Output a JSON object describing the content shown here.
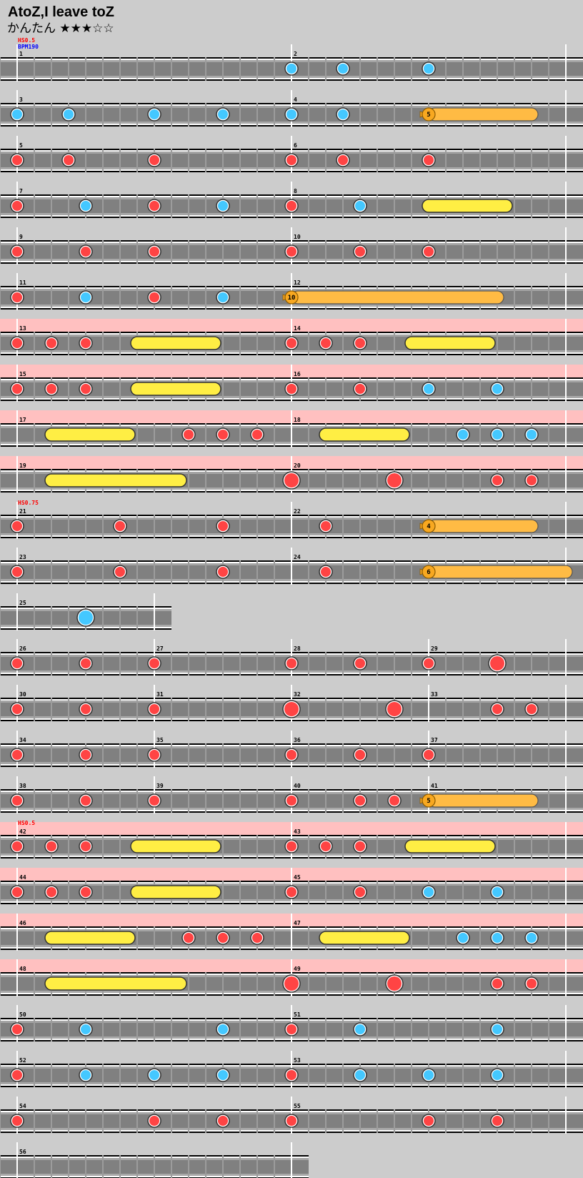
{
  "title": "AtoZ,I leave toZ",
  "difficulty": {
    "name": "かんたん",
    "stars": "★★★☆☆",
    "level": 3,
    "max": 5
  },
  "colors": {
    "don": "#ff4444",
    "ka": "#44c8ff",
    "roll": "#ffee44",
    "balloon": "#ffbb44",
    "gogo": "#ffc0c0",
    "lane": "#808080",
    "hs": "#ff0000",
    "bpm": "#0000ff"
  },
  "chart_data": {
    "type": "taiko-score",
    "units": "16th notes from row start",
    "rows": [
      {
        "labels": [
          {
            "text": "HS0.5",
            "color": "#ff0000"
          },
          {
            "text": "BPM190",
            "color": "#0000ff"
          }
        ],
        "measures": [
          {
            "num": "1",
            "start": 0
          },
          {
            "num": "2",
            "start": 16
          }
        ],
        "end": 32,
        "notes": [
          [
            16,
            "k"
          ],
          [
            19,
            "k"
          ],
          [
            24,
            "k"
          ]
        ]
      },
      {
        "measures": [
          {
            "num": "3",
            "start": 0
          },
          {
            "num": "4",
            "start": 16
          }
        ],
        "end": 32,
        "notes": [
          [
            0,
            "k"
          ],
          [
            3,
            "k"
          ],
          [
            8,
            "k"
          ],
          [
            12,
            "k"
          ],
          [
            16,
            "k"
          ],
          [
            19,
            "k"
          ]
        ],
        "rolls": [
          {
            "type": "balloon",
            "start": 24,
            "end": 30,
            "count": "5"
          }
        ]
      },
      {
        "measures": [
          {
            "num": "5",
            "start": 0
          },
          {
            "num": "6",
            "start": 16
          }
        ],
        "end": 32,
        "notes": [
          [
            0,
            "d"
          ],
          [
            3,
            "d"
          ],
          [
            8,
            "d"
          ],
          [
            16,
            "d"
          ],
          [
            19,
            "d"
          ],
          [
            24,
            "d"
          ]
        ]
      },
      {
        "measures": [
          {
            "num": "7",
            "start": 0
          },
          {
            "num": "8",
            "start": 16
          }
        ],
        "end": 32,
        "notes": [
          [
            0,
            "d"
          ],
          [
            4,
            "k"
          ],
          [
            8,
            "d"
          ],
          [
            12,
            "k"
          ],
          [
            16,
            "d"
          ],
          [
            20,
            "k"
          ]
        ],
        "rolls": [
          {
            "type": "roll",
            "start": 24,
            "end": 28.5
          }
        ]
      },
      {
        "measures": [
          {
            "num": "9",
            "start": 0
          },
          {
            "num": "10",
            "start": 16
          }
        ],
        "end": 32,
        "notes": [
          [
            0,
            "d"
          ],
          [
            4,
            "d"
          ],
          [
            8,
            "d"
          ],
          [
            16,
            "d"
          ],
          [
            20,
            "d"
          ],
          [
            24,
            "d"
          ]
        ]
      },
      {
        "measures": [
          {
            "num": "11",
            "start": 0
          },
          {
            "num": "12",
            "start": 16
          }
        ],
        "end": 32,
        "notes": [
          [
            0,
            "d"
          ],
          [
            4,
            "k"
          ],
          [
            8,
            "d"
          ],
          [
            12,
            "k"
          ]
        ],
        "rolls": [
          {
            "type": "balloon",
            "start": 16,
            "end": 28,
            "count": "10"
          }
        ]
      },
      {
        "gogo": true,
        "measures": [
          {
            "num": "13",
            "start": 0
          },
          {
            "num": "14",
            "start": 16
          }
        ],
        "end": 32,
        "notes": [
          [
            0,
            "d"
          ],
          [
            2,
            "d"
          ],
          [
            4,
            "d"
          ],
          [
            16,
            "d"
          ],
          [
            18,
            "d"
          ],
          [
            20,
            "d"
          ]
        ],
        "rolls": [
          {
            "type": "roll",
            "start": 7,
            "end": 11.5
          },
          {
            "type": "roll",
            "start": 23,
            "end": 27.5
          }
        ]
      },
      {
        "gogo": true,
        "measures": [
          {
            "num": "15",
            "start": 0
          },
          {
            "num": "16",
            "start": 16
          }
        ],
        "end": 32,
        "notes": [
          [
            0,
            "d"
          ],
          [
            2,
            "d"
          ],
          [
            4,
            "d"
          ],
          [
            16,
            "d"
          ],
          [
            20,
            "d"
          ],
          [
            24,
            "k"
          ],
          [
            28,
            "k"
          ]
        ],
        "rolls": [
          {
            "type": "roll",
            "start": 7,
            "end": 11.5
          }
        ]
      },
      {
        "gogo": true,
        "measures": [
          {
            "num": "17",
            "start": 0
          },
          {
            "num": "18",
            "start": 16
          }
        ],
        "end": 32,
        "notes": [
          [
            10,
            "d"
          ],
          [
            12,
            "d"
          ],
          [
            14,
            "d"
          ],
          [
            26,
            "k"
          ],
          [
            28,
            "k"
          ],
          [
            30,
            "k"
          ]
        ],
        "rolls": [
          {
            "type": "roll",
            "start": 2,
            "end": 6.5
          },
          {
            "type": "roll",
            "start": 18,
            "end": 22.5
          }
        ]
      },
      {
        "gogo": true,
        "measures": [
          {
            "num": "19",
            "start": 0
          },
          {
            "num": "20",
            "start": 16
          }
        ],
        "end": 32,
        "notes": [
          [
            16,
            "D"
          ],
          [
            22,
            "D"
          ],
          [
            28,
            "d"
          ],
          [
            30,
            "d"
          ]
        ],
        "rolls": [
          {
            "type": "roll",
            "start": 2,
            "end": 9.5
          }
        ]
      },
      {
        "labels": [
          {
            "text": "HS0.75",
            "color": "#ff0000"
          }
        ],
        "measures": [
          {
            "num": "21",
            "start": 0
          },
          {
            "num": "22",
            "start": 16
          }
        ],
        "end": 32,
        "notes": [
          [
            0,
            "d"
          ],
          [
            6,
            "d"
          ],
          [
            12,
            "d"
          ],
          [
            18,
            "d"
          ]
        ],
        "rolls": [
          {
            "type": "balloon",
            "start": 24,
            "end": 30,
            "count": "4"
          }
        ]
      },
      {
        "measures": [
          {
            "num": "23",
            "start": 0
          },
          {
            "num": "24",
            "start": 16
          }
        ],
        "end": 32,
        "notes": [
          [
            0,
            "d"
          ],
          [
            6,
            "d"
          ],
          [
            12,
            "d"
          ],
          [
            18,
            "d"
          ]
        ],
        "rolls": [
          {
            "type": "balloon",
            "start": 24,
            "end": 32,
            "count": "6"
          }
        ]
      },
      {
        "measures": [
          {
            "num": "25",
            "start": 0
          }
        ],
        "end": 8,
        "notes": [
          [
            4,
            "K"
          ]
        ]
      },
      {
        "measures": [
          {
            "num": "26",
            "start": 0
          },
          {
            "num": "27",
            "start": 8
          },
          {
            "num": "28",
            "start": 16
          },
          {
            "num": "29",
            "start": 24
          }
        ],
        "end": 32,
        "notes": [
          [
            0,
            "d"
          ],
          [
            4,
            "d"
          ],
          [
            8,
            "d"
          ],
          [
            16,
            "d"
          ],
          [
            20,
            "d"
          ],
          [
            24,
            "d"
          ],
          [
            28,
            "D"
          ]
        ]
      },
      {
        "measures": [
          {
            "num": "30",
            "start": 0
          },
          {
            "num": "31",
            "start": 8
          },
          {
            "num": "32",
            "start": 16
          },
          {
            "num": "33",
            "start": 24
          }
        ],
        "end": 32,
        "notes": [
          [
            0,
            "d"
          ],
          [
            4,
            "d"
          ],
          [
            8,
            "d"
          ],
          [
            16,
            "D"
          ],
          [
            22,
            "D"
          ],
          [
            28,
            "d"
          ],
          [
            30,
            "d"
          ]
        ]
      },
      {
        "measures": [
          {
            "num": "34",
            "start": 0
          },
          {
            "num": "35",
            "start": 8
          },
          {
            "num": "36",
            "start": 16
          },
          {
            "num": "37",
            "start": 24
          }
        ],
        "end": 32,
        "notes": [
          [
            0,
            "d"
          ],
          [
            4,
            "d"
          ],
          [
            8,
            "d"
          ],
          [
            16,
            "d"
          ],
          [
            20,
            "d"
          ],
          [
            24,
            "d"
          ]
        ]
      },
      {
        "measures": [
          {
            "num": "38",
            "start": 0
          },
          {
            "num": "39",
            "start": 8
          },
          {
            "num": "40",
            "start": 16
          },
          {
            "num": "41",
            "start": 24
          }
        ],
        "end": 32,
        "notes": [
          [
            0,
            "d"
          ],
          [
            4,
            "d"
          ],
          [
            8,
            "d"
          ],
          [
            16,
            "d"
          ],
          [
            20,
            "d"
          ],
          [
            22,
            "d"
          ]
        ],
        "rolls": [
          {
            "type": "balloon",
            "start": 24,
            "end": 30,
            "count": "5"
          }
        ]
      },
      {
        "gogo": true,
        "labels": [
          {
            "text": "HS0.5",
            "color": "#ff0000"
          }
        ],
        "measures": [
          {
            "num": "42",
            "start": 0
          },
          {
            "num": "43",
            "start": 16
          }
        ],
        "end": 32,
        "notes": [
          [
            0,
            "d"
          ],
          [
            2,
            "d"
          ],
          [
            4,
            "d"
          ],
          [
            16,
            "d"
          ],
          [
            18,
            "d"
          ],
          [
            20,
            "d"
          ]
        ],
        "rolls": [
          {
            "type": "roll",
            "start": 7,
            "end": 11.5
          },
          {
            "type": "roll",
            "start": 23,
            "end": 27.5
          }
        ]
      },
      {
        "gogo": true,
        "measures": [
          {
            "num": "44",
            "start": 0
          },
          {
            "num": "45",
            "start": 16
          }
        ],
        "end": 32,
        "notes": [
          [
            0,
            "d"
          ],
          [
            2,
            "d"
          ],
          [
            4,
            "d"
          ],
          [
            16,
            "d"
          ],
          [
            20,
            "d"
          ],
          [
            24,
            "k"
          ],
          [
            28,
            "k"
          ]
        ],
        "rolls": [
          {
            "type": "roll",
            "start": 7,
            "end": 11.5
          }
        ]
      },
      {
        "gogo": true,
        "measures": [
          {
            "num": "46",
            "start": 0
          },
          {
            "num": "47",
            "start": 16
          }
        ],
        "end": 32,
        "notes": [
          [
            10,
            "d"
          ],
          [
            12,
            "d"
          ],
          [
            14,
            "d"
          ],
          [
            26,
            "k"
          ],
          [
            28,
            "k"
          ],
          [
            30,
            "k"
          ]
        ],
        "rolls": [
          {
            "type": "roll",
            "start": 2,
            "end": 6.5
          },
          {
            "type": "roll",
            "start": 18,
            "end": 22.5
          }
        ]
      },
      {
        "gogo": true,
        "measures": [
          {
            "num": "48",
            "start": 0
          },
          {
            "num": "49",
            "start": 16
          }
        ],
        "end": 32,
        "notes": [
          [
            16,
            "D"
          ],
          [
            22,
            "D"
          ],
          [
            28,
            "d"
          ],
          [
            30,
            "d"
          ]
        ],
        "rolls": [
          {
            "type": "roll",
            "start": 2,
            "end": 9.5
          }
        ]
      },
      {
        "measures": [
          {
            "num": "50",
            "start": 0
          },
          {
            "num": "51",
            "start": 16
          }
        ],
        "end": 32,
        "notes": [
          [
            0,
            "d"
          ],
          [
            4,
            "k"
          ],
          [
            12,
            "k"
          ],
          [
            16,
            "d"
          ],
          [
            20,
            "k"
          ],
          [
            28,
            "k"
          ]
        ]
      },
      {
        "measures": [
          {
            "num": "52",
            "start": 0
          },
          {
            "num": "53",
            "start": 16
          }
        ],
        "end": 32,
        "notes": [
          [
            0,
            "d"
          ],
          [
            4,
            "k"
          ],
          [
            8,
            "k"
          ],
          [
            12,
            "k"
          ],
          [
            16,
            "d"
          ],
          [
            20,
            "k"
          ],
          [
            24,
            "k"
          ],
          [
            28,
            "k"
          ]
        ]
      },
      {
        "measures": [
          {
            "num": "54",
            "start": 0
          },
          {
            "num": "55",
            "start": 16
          }
        ],
        "end": 32,
        "notes": [
          [
            0,
            "d"
          ],
          [
            8,
            "d"
          ],
          [
            12,
            "d"
          ],
          [
            16,
            "d"
          ],
          [
            24,
            "d"
          ],
          [
            28,
            "d"
          ]
        ]
      },
      {
        "measures": [
          {
            "num": "56",
            "start": 0
          }
        ],
        "end": 16,
        "notes": []
      }
    ]
  }
}
